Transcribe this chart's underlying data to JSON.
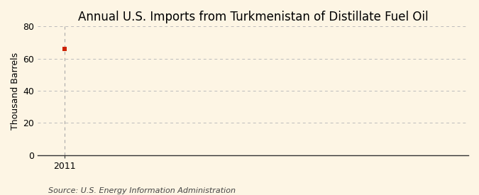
{
  "title": "Annual U.S. Imports from Turkmenistan of Distillate Fuel Oil",
  "ylabel": "Thousand Barrels",
  "source_text": "Source: U.S. Energy Information Administration",
  "x_data": [
    2011
  ],
  "y_data": [
    66
  ],
  "xlim": [
    2010.4,
    2020.0
  ],
  "ylim": [
    0,
    80
  ],
  "yticks": [
    0,
    20,
    40,
    60,
    80
  ],
  "xticks": [
    2011
  ],
  "marker_color": "#cc2200",
  "background_color": "#fdf5e4",
  "plot_bg_color": "#fdf5e4",
  "grid_color": "#bbbbbb",
  "vline_color": "#aaaaaa",
  "spine_color": "#333333",
  "title_fontsize": 12,
  "label_fontsize": 9,
  "tick_fontsize": 9,
  "source_fontsize": 8
}
